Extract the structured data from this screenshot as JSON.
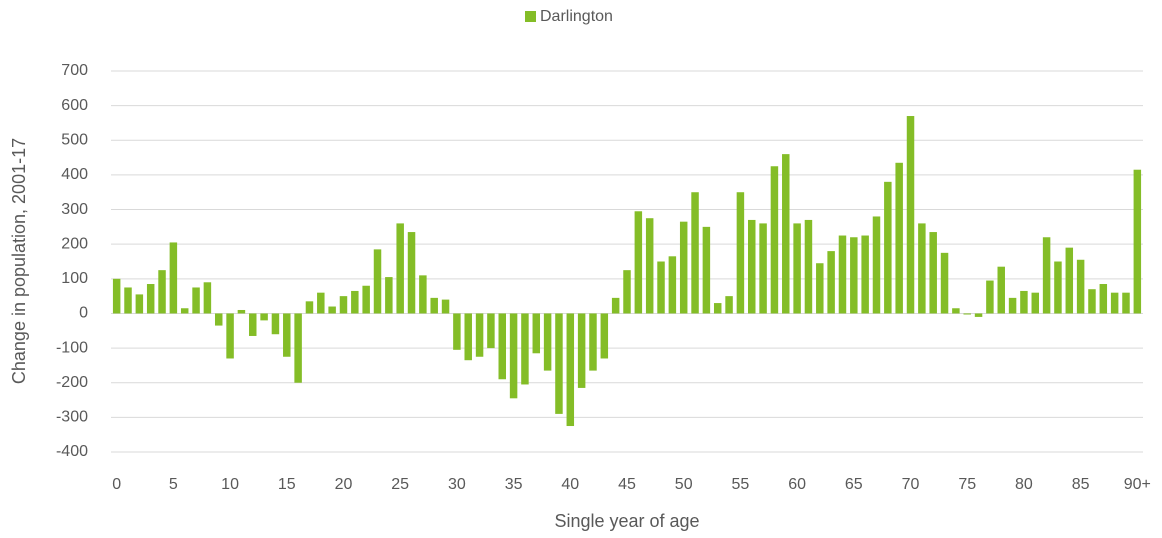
{
  "chart_data": {
    "type": "bar",
    "x_label": "Single year of age",
    "y_label": "Change in population, 2001-17",
    "categories": [
      "0",
      null,
      null,
      null,
      null,
      "5",
      null,
      null,
      null,
      null,
      "10",
      null,
      null,
      null,
      null,
      "15",
      null,
      null,
      null,
      null,
      "20",
      null,
      null,
      null,
      null,
      "25",
      null,
      null,
      null,
      null,
      "30",
      null,
      null,
      null,
      null,
      "35",
      null,
      null,
      null,
      null,
      "40",
      null,
      null,
      null,
      null,
      "45",
      null,
      null,
      null,
      null,
      "50",
      null,
      null,
      null,
      null,
      "55",
      null,
      null,
      null,
      null,
      "60",
      null,
      null,
      null,
      null,
      "65",
      null,
      null,
      null,
      null,
      "70",
      null,
      null,
      null,
      null,
      "75",
      null,
      null,
      null,
      null,
      "80",
      null,
      null,
      null,
      null,
      "85",
      null,
      null,
      null,
      null,
      "90+"
    ],
    "series": [
      {
        "name": "Darlington",
        "color": "#84bd27",
        "values": [
          100,
          75,
          55,
          85,
          125,
          205,
          15,
          75,
          90,
          -35,
          -130,
          10,
          -65,
          -20,
          -60,
          -125,
          -200,
          35,
          60,
          20,
          50,
          65,
          80,
          185,
          105,
          260,
          235,
          110,
          45,
          40,
          -105,
          -135,
          -125,
          -100,
          -190,
          -245,
          -205,
          -115,
          -165,
          -290,
          -325,
          -215,
          -165,
          -130,
          45,
          125,
          295,
          275,
          150,
          165,
          265,
          350,
          250,
          30,
          50,
          350,
          270,
          260,
          425,
          460,
          260,
          270,
          145,
          180,
          225,
          220,
          225,
          280,
          380,
          435,
          570,
          260,
          235,
          175,
          15,
          -3,
          -10,
          95,
          135,
          45,
          65,
          60,
          220,
          150,
          190,
          155,
          70,
          85,
          60,
          60,
          415
        ]
      }
    ],
    "ylim": [
      -400,
      700
    ],
    "yticks": [
      -400,
      -300,
      -200,
      -100,
      0,
      100,
      200,
      300,
      400,
      500,
      600,
      700
    ],
    "grid": true,
    "legend": "top"
  }
}
